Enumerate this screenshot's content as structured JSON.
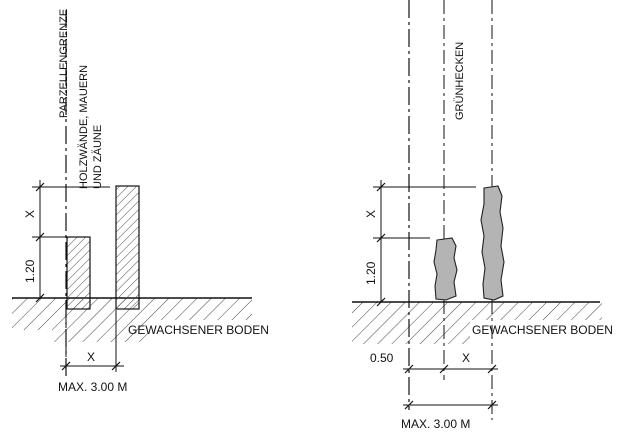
{
  "left": {
    "label_boundary": "PARZELLENGRENZE",
    "label_walls_line1": "HOLZWÄNDE, MAUERN",
    "label_walls_line2": "UND ZÄUNE",
    "dim_x_vertical": "X",
    "dim_height": "1.20",
    "ground_label": "GEWACHSENER BODEN",
    "dim_x_horizontal": "X",
    "dim_max": "MAX. 3.00 M"
  },
  "right": {
    "label_hedges": "GRÜNHECKEN",
    "dim_x_vertical": "X",
    "dim_height": "1.20",
    "ground_label": "GEWACHSENER BODEN",
    "dim_offset": "0.50",
    "dim_x_horizontal": "X",
    "dim_max": "MAX. 3.00 M"
  },
  "colors": {
    "line": "#111111",
    "hedge_fill": "#b4b4b4",
    "hatch": "#333333"
  }
}
